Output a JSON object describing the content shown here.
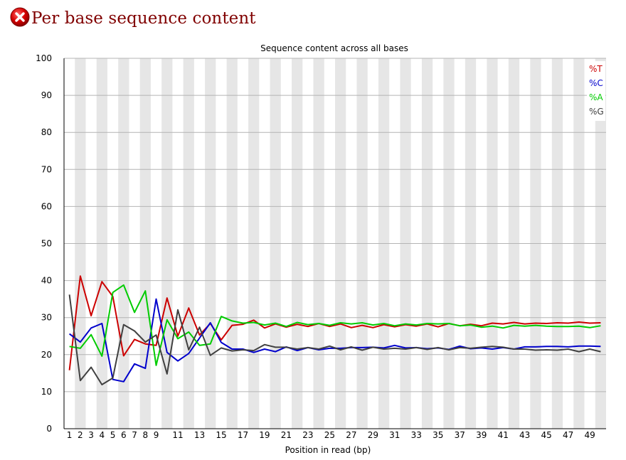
{
  "header": {
    "title": "Per base sequence content",
    "status_icon": "error-icon",
    "status_color": "#cc0000"
  },
  "chart_data": {
    "type": "line",
    "title": "Sequence content across all bases",
    "xlabel": "Position in read (bp)",
    "ylabel": "",
    "ylim": [
      0,
      100
    ],
    "yticks": [
      0,
      10,
      20,
      30,
      40,
      50,
      60,
      70,
      80,
      90,
      100
    ],
    "xtick_labels": [
      "1",
      "2",
      "3",
      "4",
      "5",
      "6",
      "7",
      "8",
      "9",
      "11",
      "13",
      "15",
      "17",
      "19",
      "21",
      "23",
      "25",
      "27",
      "29",
      "31",
      "33",
      "35",
      "37",
      "39",
      "41",
      "43",
      "45",
      "47",
      "49"
    ],
    "grid": "horizontal",
    "band_shading": "alternating-gray",
    "legend_position": "top-right",
    "x": [
      1,
      2,
      3,
      4,
      5,
      6,
      7,
      8,
      9,
      10,
      11,
      12,
      13,
      14,
      15,
      16,
      17,
      18,
      19,
      20,
      21,
      22,
      23,
      24,
      25,
      26,
      27,
      28,
      29,
      30,
      31,
      32,
      33,
      34,
      35,
      36,
      37,
      38,
      39,
      40,
      41,
      42,
      43,
      44,
      45,
      46,
      47,
      48,
      49,
      50
    ],
    "series": [
      {
        "name": "%T",
        "color": "#cc0000",
        "values": [
          15.8,
          41.2,
          30.5,
          39.7,
          35.7,
          19.7,
          24.1,
          22.9,
          22.5,
          35.3,
          25.0,
          32.6,
          25.3,
          28.4,
          24.0,
          27.9,
          28.2,
          29.3,
          27.2,
          28.3,
          27.4,
          28.2,
          27.6,
          28.4,
          27.6,
          28.3,
          27.3,
          27.9,
          27.3,
          28.1,
          27.5,
          28.1,
          27.7,
          28.3,
          27.5,
          28.4,
          27.8,
          28.2,
          27.8,
          28.5,
          28.3,
          28.7,
          28.3,
          28.5,
          28.4,
          28.6,
          28.5,
          28.8,
          28.5,
          28.6
        ]
      },
      {
        "name": "%C",
        "color": "#0000cc",
        "values": [
          25.6,
          23.4,
          27.2,
          28.4,
          13.3,
          12.7,
          17.5,
          16.3,
          35.0,
          20.6,
          18.3,
          20.3,
          24.5,
          28.6,
          23.3,
          21.5,
          21.5,
          20.6,
          21.5,
          20.8,
          22.1,
          21.1,
          21.9,
          21.3,
          21.7,
          21.7,
          21.9,
          21.9,
          22.0,
          21.8,
          22.5,
          21.8,
          21.9,
          21.6,
          21.8,
          21.4,
          22.3,
          21.6,
          21.8,
          21.5,
          21.9,
          21.5,
          22.1,
          22.1,
          22.2,
          22.2,
          22.1,
          22.3,
          22.3,
          22.2
        ]
      },
      {
        "name": "%A",
        "color": "#00cc00",
        "values": [
          22.2,
          21.7,
          25.4,
          19.6,
          36.8,
          38.8,
          31.4,
          37.2,
          17.1,
          29.4,
          24.3,
          26.1,
          22.5,
          22.9,
          30.3,
          29.1,
          28.5,
          28.7,
          28.0,
          28.5,
          27.6,
          28.7,
          28.1,
          28.4,
          27.9,
          28.6,
          28.3,
          28.6,
          28.0,
          28.4,
          27.8,
          28.3,
          28.0,
          28.4,
          28.3,
          28.4,
          27.8,
          28.0,
          27.4,
          27.7,
          27.2,
          27.9,
          27.7,
          27.9,
          27.7,
          27.6,
          27.6,
          27.7,
          27.3,
          27.8
        ]
      },
      {
        "name": "%G",
        "color": "#404040",
        "values": [
          36.2,
          13.0,
          16.6,
          11.9,
          13.7,
          28.1,
          26.4,
          23.4,
          25.3,
          14.8,
          32.1,
          21.3,
          27.4,
          19.8,
          21.8,
          21.0,
          21.3,
          21.1,
          22.7,
          22.0,
          22.0,
          21.5,
          21.9,
          21.5,
          22.3,
          21.3,
          22.1,
          21.2,
          22.0,
          21.5,
          21.7,
          21.5,
          21.9,
          21.4,
          21.9,
          21.3,
          21.9,
          21.7,
          22.0,
          22.2,
          22.0,
          21.5,
          21.5,
          21.2,
          21.3,
          21.2,
          21.5,
          20.8,
          21.5,
          20.8
        ]
      }
    ]
  }
}
